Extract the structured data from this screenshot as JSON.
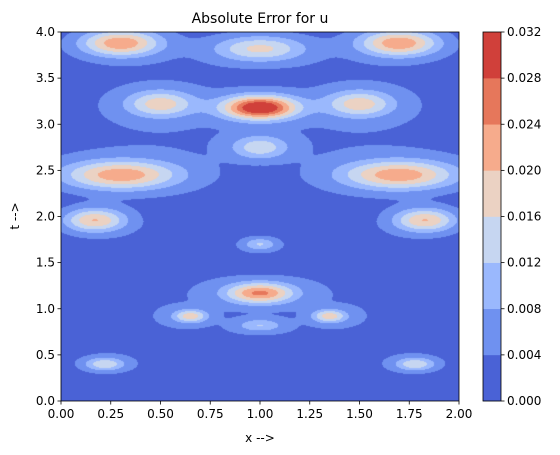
{
  "chart_data": {
    "type": "heatmap",
    "subtype": "filled-contour",
    "title": "Absolute Error for u",
    "xlabel": "x -->",
    "ylabel": "t -->",
    "xlim": [
      0,
      2
    ],
    "ylim": [
      0,
      4
    ],
    "x_ticks": [
      "0.00",
      "0.25",
      "0.50",
      "0.75",
      "1.00",
      "1.25",
      "1.50",
      "1.75",
      "2.00"
    ],
    "y_ticks": [
      "0.0",
      "0.5",
      "1.0",
      "1.5",
      "2.0",
      "2.5",
      "3.0",
      "3.5",
      "4.0"
    ],
    "colorbar": {
      "levels": [
        0.0,
        0.004,
        0.008,
        0.012,
        0.016,
        0.02,
        0.024,
        0.028,
        0.032
      ],
      "tick_labels": [
        "0.000",
        "0.004",
        "0.008",
        "0.012",
        "0.016",
        "0.020",
        "0.024",
        "0.028",
        "0.032"
      ],
      "colors": [
        "#4a62d6",
        "#6f91f0",
        "#9ab8fd",
        "#c6d6f1",
        "#ebd2c3",
        "#f6ab8c",
        "#e6775b",
        "#d0403a"
      ],
      "cmap": "coolwarm"
    },
    "error_features": [
      {
        "x": 1.0,
        "t": 3.18,
        "peak": 0.031,
        "sx": 0.13,
        "st": 0.09
      },
      {
        "x": 1.0,
        "t": 1.17,
        "peak": 0.022,
        "sx": 0.12,
        "st": 0.08
      },
      {
        "x": 0.3,
        "t": 3.88,
        "peak": 0.021,
        "sx": 0.14,
        "st": 0.1
      },
      {
        "x": 1.7,
        "t": 3.88,
        "peak": 0.021,
        "sx": 0.14,
        "st": 0.1
      },
      {
        "x": 0.3,
        "t": 2.45,
        "peak": 0.02,
        "sx": 0.2,
        "st": 0.11
      },
      {
        "x": 1.7,
        "t": 2.45,
        "peak": 0.02,
        "sx": 0.2,
        "st": 0.11
      },
      {
        "x": 0.17,
        "t": 1.96,
        "peak": 0.018,
        "sx": 0.11,
        "st": 0.09
      },
      {
        "x": 1.83,
        "t": 1.96,
        "peak": 0.018,
        "sx": 0.11,
        "st": 0.09
      },
      {
        "x": 0.5,
        "t": 3.22,
        "peak": 0.015,
        "sx": 0.12,
        "st": 0.1
      },
      {
        "x": 1.5,
        "t": 3.22,
        "peak": 0.015,
        "sx": 0.12,
        "st": 0.1
      },
      {
        "x": 1.0,
        "t": 3.82,
        "peak": 0.015,
        "sx": 0.16,
        "st": 0.1
      },
      {
        "x": 1.0,
        "t": 2.75,
        "peak": 0.012,
        "sx": 0.1,
        "st": 0.09
      },
      {
        "x": 0.65,
        "t": 0.92,
        "peak": 0.015,
        "sx": 0.06,
        "st": 0.05
      },
      {
        "x": 1.35,
        "t": 0.92,
        "peak": 0.015,
        "sx": 0.06,
        "st": 0.05
      },
      {
        "x": 0.22,
        "t": 0.4,
        "peak": 0.013,
        "sx": 0.07,
        "st": 0.05
      },
      {
        "x": 1.78,
        "t": 0.4,
        "peak": 0.013,
        "sx": 0.07,
        "st": 0.05
      },
      {
        "x": 1.0,
        "t": 1.7,
        "peak": 0.01,
        "sx": 0.06,
        "st": 0.05
      },
      {
        "x": 1.0,
        "t": 0.82,
        "peak": 0.009,
        "sx": 0.08,
        "st": 0.05
      }
    ]
  }
}
